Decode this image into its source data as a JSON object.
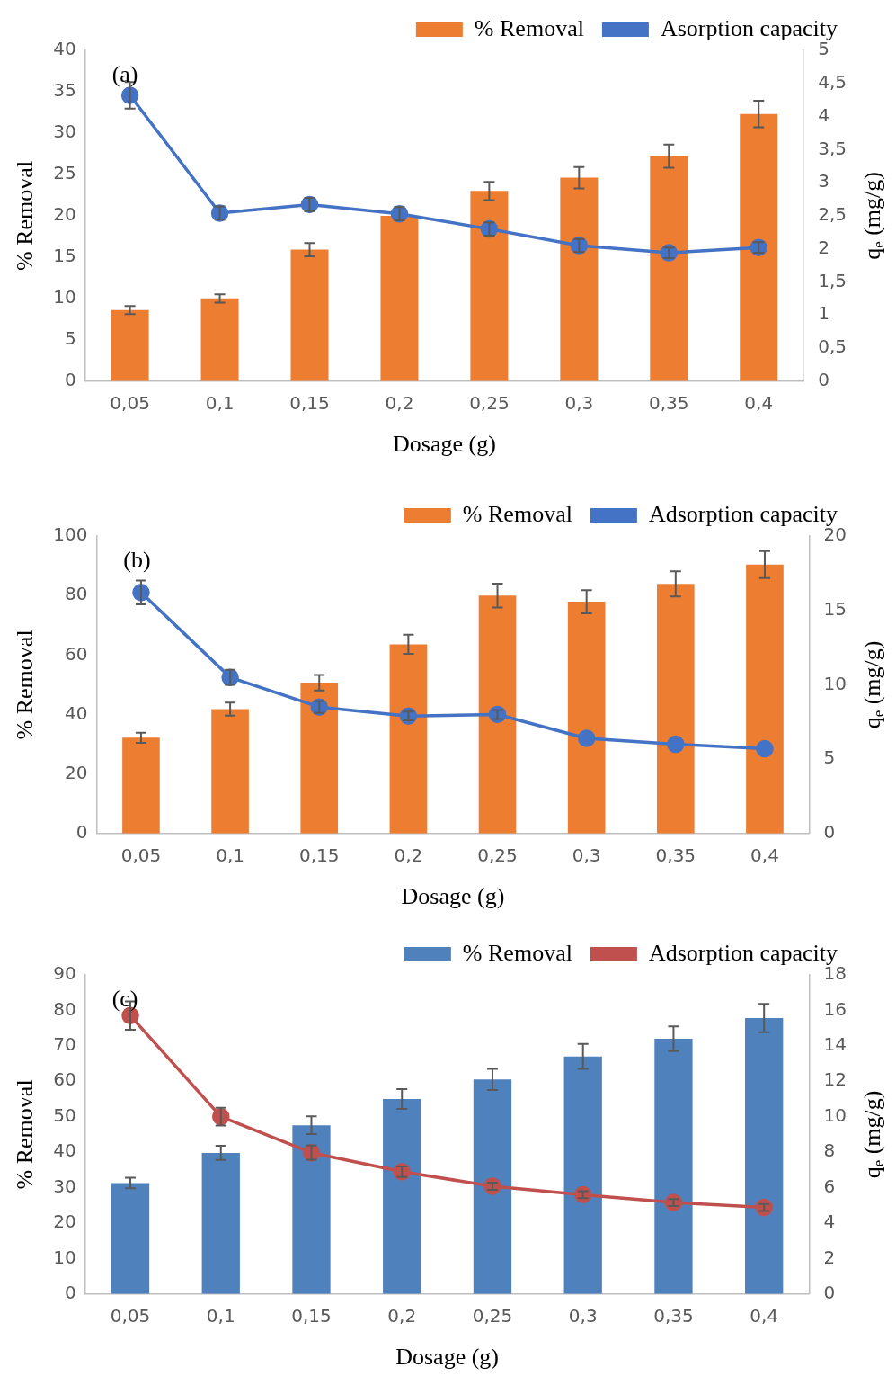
{
  "chart_data": [
    {
      "type": "bar",
      "annotations": [
        "(a)"
      ],
      "categories": [
        "0,05",
        "0,1",
        "0,15",
        "0,2",
        "0,25",
        "0,3",
        "0,35",
        "0,4"
      ],
      "xlabel": "Dosage (g)",
      "ylabel": "% Removal",
      "y2label": "q$_{e}$ (mg/g)",
      "legend": "top",
      "marker": "circle",
      "ylim": [
        0,
        40
      ],
      "yticks": [
        0,
        5,
        10,
        15,
        20,
        25,
        30,
        35,
        40
      ],
      "y2lim": [
        0,
        5
      ],
      "y2ticks": [
        0,
        {
          "value": 0.5,
          "label": "0,5"
        },
        1,
        {
          "value": 1.5,
          "label": "1,5"
        },
        2,
        {
          "value": 2.5,
          "label": "2,5"
        },
        3,
        {
          "value": 3.5,
          "label": "3,5"
        },
        4,
        {
          "value": 4.5,
          "label": "4,5"
        },
        5
      ],
      "series": [
        {
          "name": "% Removal",
          "color": "#ed7d31",
          "values": [
            8.6,
            10.0,
            15.9,
            20.0,
            23.0,
            24.6,
            27.2,
            32.3
          ],
          "errors": [
            0.5,
            0.5,
            0.8,
            null,
            1.1,
            1.3,
            1.4,
            1.6
          ]
        },
        {
          "name": "Asorption capacity",
          "type": "line",
          "axis": "y2",
          "color": "#4472c4",
          "values": [
            4.32,
            2.54,
            2.67,
            2.53,
            2.3,
            2.05,
            1.94,
            2.02
          ],
          "errors": [
            0.2,
            0.1,
            0.1,
            0.1,
            0.1,
            0.1,
            0.08,
            0.08
          ]
        }
      ]
    },
    {
      "type": "bar",
      "annotations": [
        "(b)"
      ],
      "categories": [
        "0,05",
        "0,1",
        "0,15",
        "0,2",
        "0,25",
        "0,3",
        "0,35",
        "0,4"
      ],
      "xlabel": "Dosage (g)",
      "ylabel": "% Removal",
      "y2label": "q$_{e}$ (mg/g)",
      "legend": "top",
      "marker": "circle",
      "ylim": [
        0,
        100
      ],
      "yticks": [
        0,
        20,
        40,
        60,
        80,
        100
      ],
      "y2lim": [
        0,
        20
      ],
      "y2ticks": [
        0,
        5,
        10,
        15,
        20
      ],
      "series": [
        {
          "name": "% Removal",
          "color": "#ed7d31",
          "values": [
            32.2,
            41.8,
            50.7,
            63.6,
            80.0,
            77.9,
            83.9,
            90.4
          ],
          "errors": [
            1.7,
            2.2,
            2.6,
            3.2,
            4.0,
            3.9,
            4.2,
            4.5
          ]
        },
        {
          "name": "Adsorption capacity",
          "type": "line",
          "axis": "y2",
          "color": "#4472c4",
          "values": [
            16.2,
            10.5,
            8.5,
            7.9,
            8.0,
            6.4,
            6.0,
            5.7
          ],
          "errors": [
            0.8,
            0.5,
            0.4,
            0.3,
            0.3,
            null,
            null,
            null
          ]
        }
      ]
    },
    {
      "type": "bar",
      "annotations": [
        "(c)"
      ],
      "categories": [
        "0,05",
        "0,1",
        "0,15",
        "0,2",
        "0,25",
        "0,3",
        "0,35",
        "0,4"
      ],
      "xlabel": "Dosage (g)",
      "ylabel": "% Removal",
      "y2label": "q$_{e}$ (mg/g)",
      "legend": "top",
      "marker": "circle",
      "ylim": [
        0,
        90
      ],
      "yticks": [
        0,
        10,
        20,
        30,
        40,
        50,
        60,
        70,
        80,
        90
      ],
      "y2lim": [
        0,
        18
      ],
      "y2ticks": [
        0,
        2,
        4,
        6,
        8,
        10,
        12,
        14,
        16,
        18
      ],
      "series": [
        {
          "name": "% Removal",
          "color": "#4f81bd",
          "values": [
            31.3,
            39.8,
            47.6,
            55.0,
            60.5,
            67.0,
            72.0,
            77.8
          ],
          "errors": [
            1.5,
            2.0,
            2.5,
            2.8,
            3.0,
            3.5,
            3.5,
            4.0
          ]
        },
        {
          "name": "Adsorption capacity",
          "type": "line",
          "axis": "y2",
          "color": "#c0504d",
          "values": [
            15.7,
            10.0,
            7.97,
            6.9,
            6.08,
            5.6,
            5.16,
            4.88
          ],
          "errors": [
            0.8,
            0.5,
            0.4,
            0.3,
            0.2,
            0.2,
            0.2,
            0.2
          ]
        }
      ]
    }
  ]
}
